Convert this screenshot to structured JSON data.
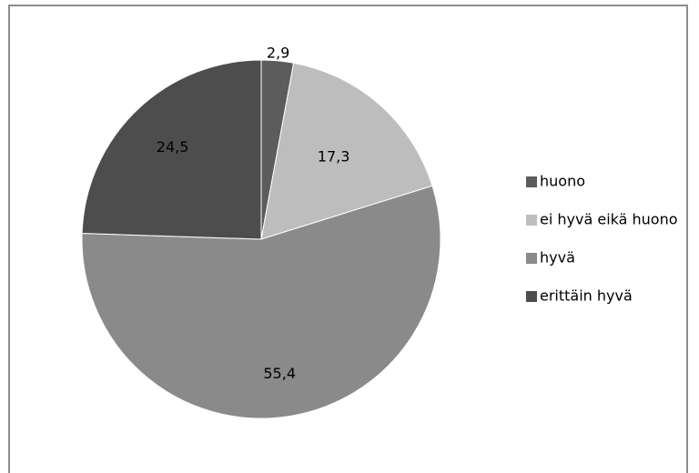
{
  "chart_data": {
    "type": "pie",
    "categories": [
      "huono",
      "ei hyvä eikä huono",
      "hyvä",
      "erittäin hyvä"
    ],
    "values": [
      2.9,
      17.3,
      55.4,
      24.5
    ],
    "labels": [
      "2,9",
      "17,3",
      "55,4",
      "24,5"
    ],
    "colors": [
      "#5c5c5c",
      "#bdbdbd",
      "#8a8a8a",
      "#4d4d4d"
    ],
    "legend_position": "right",
    "start_angle_deg": 0,
    "direction": "clockwise"
  }
}
